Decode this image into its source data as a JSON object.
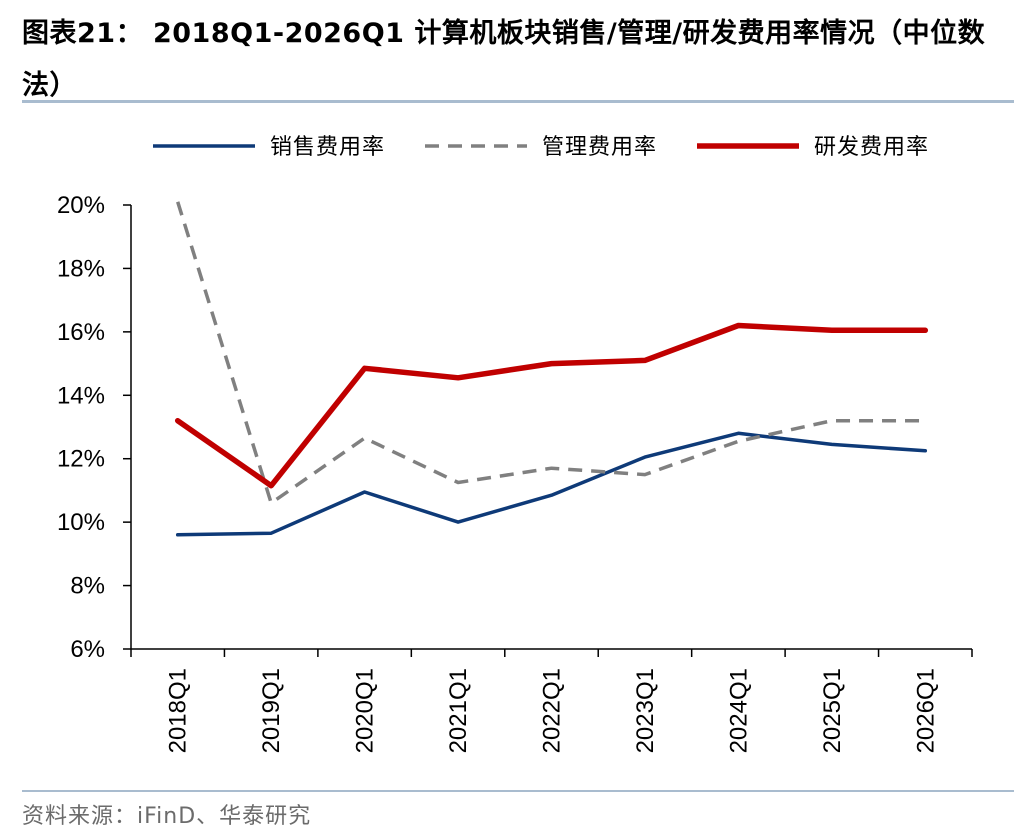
{
  "header": {
    "title": "图表21： 2018Q1-2026Q1 计算机板块销售/管理/研发费用率情况（中位数法）"
  },
  "footer": {
    "source": "资料来源：iFinD、华泰研究"
  },
  "colors": {
    "rule": "#a9bccf",
    "sales": "#0e3a78",
    "admin": "#808080",
    "rnd": "#c00000"
  },
  "chart_data": {
    "type": "line",
    "title": "图表21： 2018Q1-2026Q1 计算机板块销售/管理/研发费用率情况（中位数法）",
    "categories": [
      "2018Q1",
      "2019Q1",
      "2020Q1",
      "2021Q1",
      "2022Q1",
      "2023Q1",
      "2024Q1",
      "2025Q1",
      "2026Q1"
    ],
    "x_extra_tick_count_between": 0,
    "ylim": [
      6,
      20
    ],
    "yticks": [
      "6%",
      "8%",
      "10%",
      "12%",
      "14%",
      "16%",
      "18%",
      "20%"
    ],
    "yunit": "%",
    "grid": false,
    "legend_position": "top",
    "series": [
      {
        "name": "销售费用率",
        "style": "solid",
        "color": "#0e3a78",
        "values": [
          9.6,
          9.65,
          10.95,
          10.0,
          10.85,
          12.05,
          12.8,
          12.45,
          12.25
        ]
      },
      {
        "name": "管理费用率",
        "style": "dashed",
        "color": "#808080",
        "values": [
          20.1,
          10.6,
          12.65,
          11.25,
          11.7,
          11.5,
          12.55,
          13.2,
          13.2
        ]
      },
      {
        "name": "研发费用率",
        "style": "solid-thick",
        "color": "#c00000",
        "values": [
          13.2,
          11.15,
          14.85,
          14.55,
          15.0,
          15.1,
          16.2,
          16.05,
          16.05
        ]
      }
    ]
  }
}
